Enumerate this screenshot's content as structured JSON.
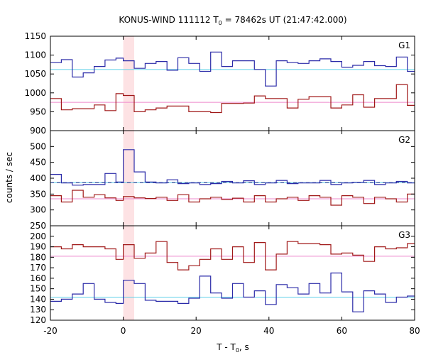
{
  "chart_data": {
    "type": "line",
    "title": "KONUS-WIND 111112 T",
    "title_sub": "0",
    "title_rest": " = 78462s UT (21:47:42.000)",
    "xlabel": "T - T",
    "xlabel_sub": "0",
    "xlabel_rest": ", s",
    "ylabel": "counts / sec",
    "xlim": [
      -20,
      80
    ],
    "x_ticks": [
      -20,
      0,
      20,
      40,
      60,
      80
    ],
    "x_tick_labels": [
      "-20",
      "0",
      "20",
      "40",
      "60",
      "80"
    ],
    "highlight_interval": [
      0,
      3
    ],
    "panels": [
      {
        "name": "G1",
        "ylim": [
          900,
          1150
        ],
        "y_ticks": [
          900,
          950,
          1000,
          1050,
          1100,
          1150
        ],
        "y_tick_labels": [
          "900",
          "950",
          "1000",
          "1050",
          "1100",
          "1150"
        ],
        "series": [
          {
            "color": "#2a2aa8",
            "x": [
              -20,
              -17,
              -14,
              -11,
              -8,
              -5,
              -2,
              0,
              3,
              6,
              9,
              12,
              15,
              18,
              21,
              24,
              27,
              30,
              33,
              36,
              39,
              42,
              45,
              48,
              51,
              54,
              57,
              60,
              63,
              66,
              69,
              72,
              75,
              78
            ],
            "y": [
              1080,
              1088,
              1042,
              1053,
              1070,
              1087,
              1092,
              1085,
              1065,
              1078,
              1083,
              1060,
              1093,
              1078,
              1057,
              1108,
              1070,
              1085,
              1085,
              1062,
              1018,
              1085,
              1080,
              1078,
              1085,
              1090,
              1083,
              1068,
              1073,
              1083,
              1072,
              1070,
              1095,
              1057
            ],
            "baseline": 1062,
            "baseline_color": "#5fd0e8",
            "dashed": false
          },
          {
            "color": "#a01818",
            "x": [
              -20,
              -17,
              -14,
              -11,
              -8,
              -5,
              -2,
              0,
              3,
              6,
              9,
              12,
              15,
              18,
              21,
              24,
              27,
              30,
              33,
              36,
              39,
              42,
              45,
              48,
              51,
              54,
              57,
              60,
              63,
              66,
              69,
              72,
              75,
              78
            ],
            "y": [
              985,
              955,
              958,
              958,
              968,
              953,
              998,
              993,
              950,
              955,
              960,
              965,
              965,
              950,
              950,
              948,
              972,
              972,
              973,
              992,
              985,
              985,
              960,
              983,
              990,
              990,
              960,
              968,
              995,
              962,
              985,
              985,
              1022,
              967
            ],
            "baseline": 975,
            "baseline_color": "#ee88cc",
            "dashed": false
          }
        ]
      },
      {
        "name": "G2",
        "ylim": [
          250,
          550
        ],
        "y_ticks": [
          250,
          300,
          350,
          400,
          450,
          500
        ],
        "y_tick_labels": [
          "250",
          "300",
          "350",
          "400",
          "450",
          "500"
        ],
        "series": [
          {
            "color": "#2a2aa8",
            "x": [
              -20,
              -17,
              -14,
              -11,
              -8,
              -5,
              -2,
              0,
              3,
              6,
              9,
              12,
              15,
              18,
              21,
              24,
              27,
              30,
              33,
              36,
              39,
              42,
              45,
              48,
              51,
              54,
              57,
              60,
              63,
              66,
              69,
              72,
              75,
              78
            ],
            "y": [
              412,
              385,
              378,
              380,
              380,
              415,
              388,
              490,
              420,
              388,
              385,
              395,
              383,
              385,
              380,
              383,
              390,
              385,
              392,
              380,
              385,
              393,
              383,
              385,
              385,
              393,
              380,
              385,
              387,
              393,
              380,
              385,
              390,
              385
            ],
            "baseline": 386,
            "baseline_color": "#5fd0e8",
            "dashed": true
          },
          {
            "color": "#a01818",
            "x": [
              -20,
              -17,
              -14,
              -11,
              -8,
              -5,
              -2,
              0,
              3,
              6,
              9,
              12,
              15,
              18,
              21,
              24,
              27,
              30,
              33,
              36,
              39,
              42,
              45,
              48,
              51,
              54,
              57,
              60,
              63,
              66,
              69,
              72,
              75,
              78
            ],
            "y": [
              345,
              325,
              362,
              340,
              348,
              338,
              330,
              342,
              338,
              336,
              340,
              330,
              348,
              325,
              335,
              340,
              333,
              337,
              325,
              345,
              325,
              335,
              340,
              330,
              345,
              340,
              315,
              345,
              340,
              320,
              340,
              335,
              325,
              350
            ],
            "baseline": 335,
            "baseline_color": "#ee88cc",
            "dashed": false
          }
        ]
      },
      {
        "name": "G3",
        "ylim": [
          120,
          210
        ],
        "y_ticks": [
          120,
          130,
          140,
          150,
          160,
          170,
          180,
          190,
          200
        ],
        "y_tick_labels": [
          "120",
          "130",
          "140",
          "150",
          "160",
          "170",
          "180",
          "190",
          "200"
        ],
        "series": [
          {
            "color": "#2a2aa8",
            "x": [
              -20,
              -17,
              -14,
              -11,
              -8,
              -5,
              -2,
              0,
              3,
              6,
              9,
              12,
              15,
              18,
              21,
              24,
              27,
              30,
              33,
              36,
              39,
              42,
              45,
              48,
              51,
              54,
              57,
              60,
              63,
              66,
              69,
              72,
              75,
              78
            ],
            "y": [
              138,
              140,
              145,
              155,
              140,
              137,
              136,
              158,
              155,
              139,
              138,
              138,
              136,
              141,
              162,
              146,
              141,
              155,
              142,
              148,
              135,
              154,
              151,
              145,
              155,
              146,
              165,
              147,
              128,
              148,
              145,
              137,
              142,
              143
            ],
            "baseline": 142,
            "baseline_color": "#5fd0e8",
            "dashed": false
          },
          {
            "color": "#a01818",
            "x": [
              -20,
              -17,
              -14,
              -11,
              -8,
              -5,
              -2,
              0,
              3,
              6,
              9,
              12,
              15,
              18,
              21,
              24,
              27,
              30,
              33,
              36,
              39,
              42,
              45,
              48,
              51,
              54,
              57,
              60,
              63,
              66,
              69,
              72,
              75,
              78
            ],
            "y": [
              190,
              188,
              192,
              190,
              190,
              188,
              178,
              192,
              179,
              184,
              195,
              175,
              168,
              172,
              178,
              188,
              178,
              190,
              175,
              194,
              168,
              183,
              195,
              193,
              193,
              192,
              183,
              184,
              182,
              176,
              190,
              188,
              189,
              193
            ],
            "baseline": 181,
            "baseline_color": "#ee88cc",
            "dashed": false
          }
        ]
      }
    ]
  }
}
